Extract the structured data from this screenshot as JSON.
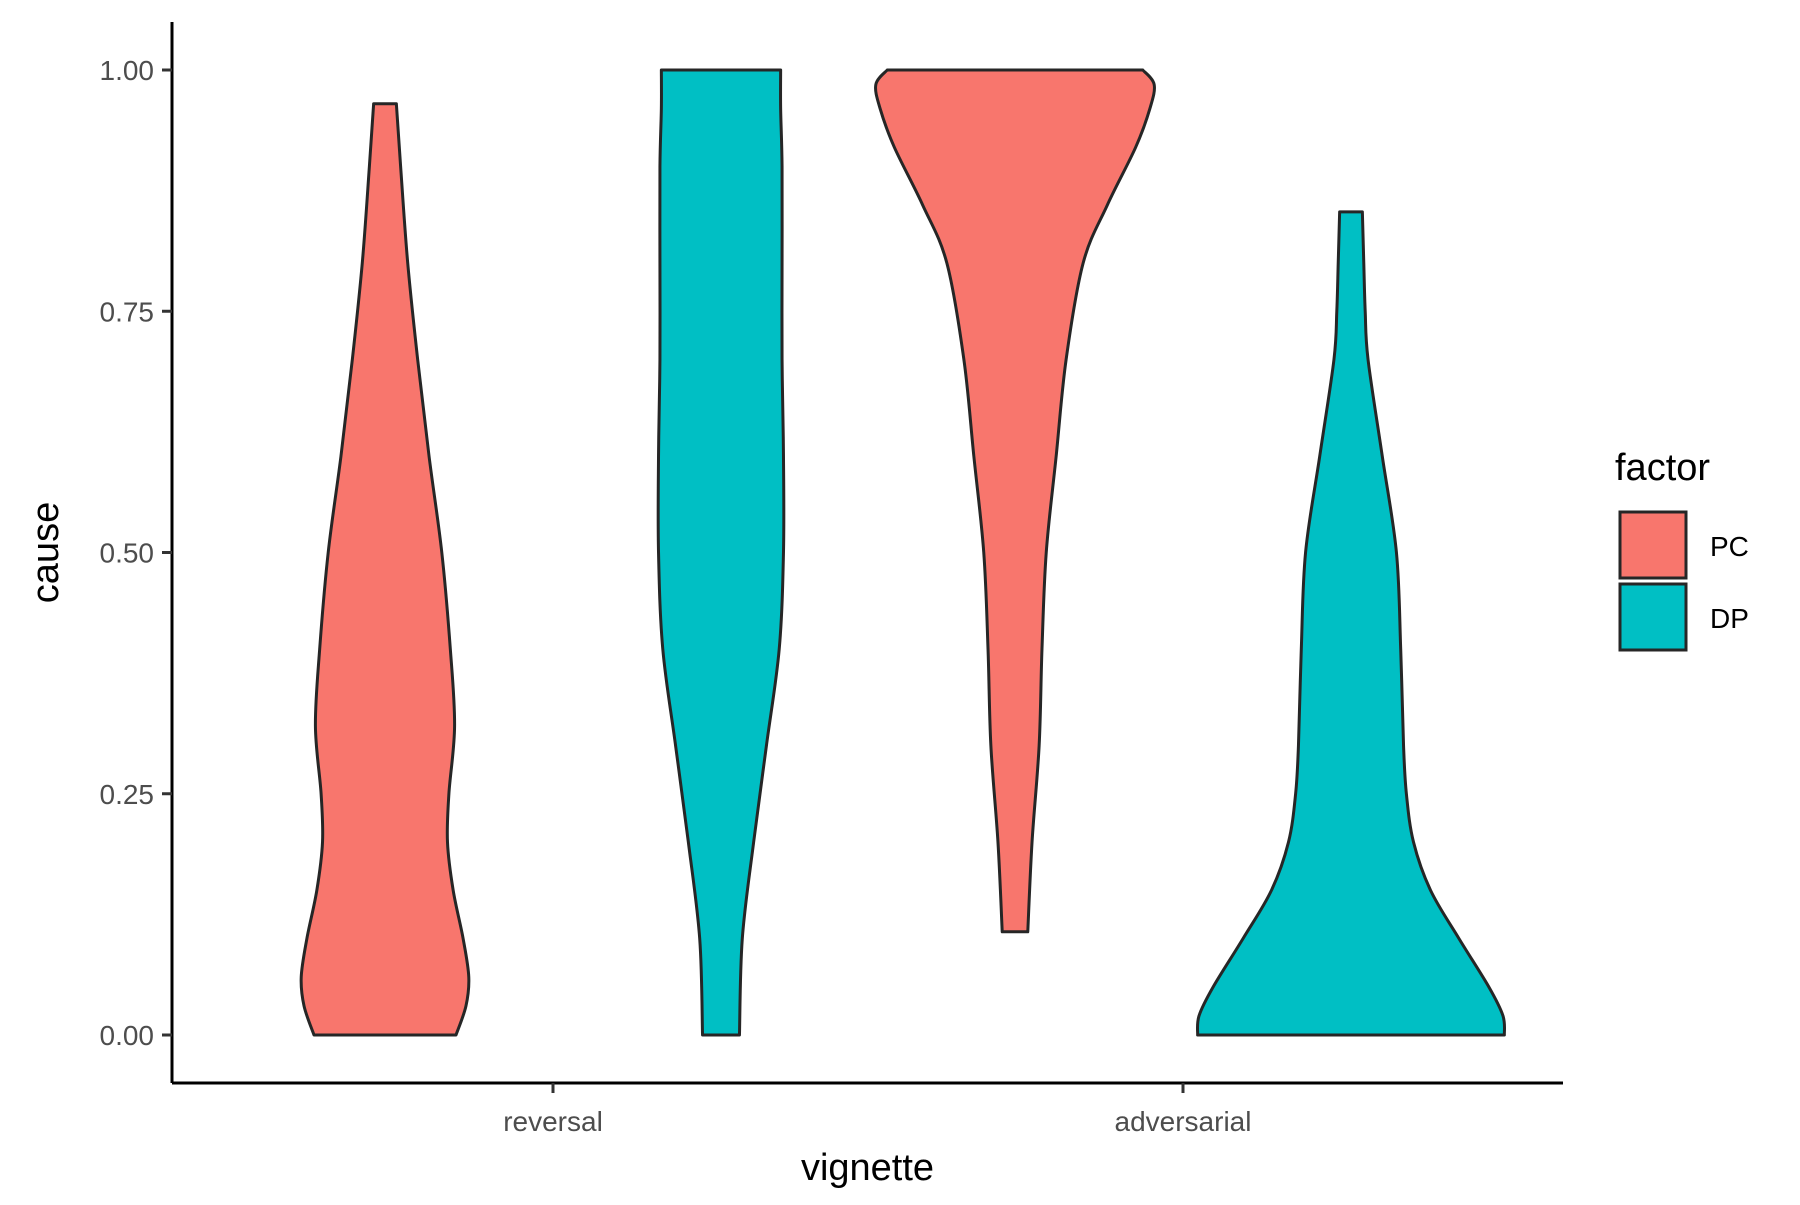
{
  "chart_data": {
    "type": "violin",
    "xlabel": "vignette",
    "ylabel": "cause",
    "categories": [
      "reversal",
      "adversarial"
    ],
    "ylim": [
      -0.05,
      1.05
    ],
    "yticks": [
      0.0,
      0.25,
      0.5,
      0.75,
      1.0
    ],
    "ytick_labels": [
      "0.00",
      "0.25",
      "0.50",
      "0.75",
      "1.00"
    ],
    "grid": false,
    "legend": {
      "title": "factor",
      "position": "right",
      "entries": [
        {
          "name": "PC",
          "color": "#F8766D"
        },
        {
          "name": "DP",
          "color": "#00BFC4"
        }
      ]
    },
    "series": [
      {
        "name": "PC",
        "color": "#F8766D",
        "violins": [
          {
            "category": "reversal",
            "range": [
              0.0,
              0.965
            ],
            "profile": [
              [
                0.0,
                0.5
              ],
              [
                0.03,
                0.57
              ],
              [
                0.06,
                0.59
              ],
              [
                0.1,
                0.55
              ],
              [
                0.15,
                0.48
              ],
              [
                0.2,
                0.44
              ],
              [
                0.25,
                0.45
              ],
              [
                0.32,
                0.49
              ],
              [
                0.4,
                0.46
              ],
              [
                0.5,
                0.4
              ],
              [
                0.6,
                0.31
              ],
              [
                0.7,
                0.23
              ],
              [
                0.8,
                0.16
              ],
              [
                0.9,
                0.11
              ],
              [
                0.965,
                0.08
              ]
            ]
          },
          {
            "category": "adversarial",
            "range": [
              0.107,
              1.0
            ],
            "profile": [
              [
                0.107,
                0.09
              ],
              [
                0.2,
                0.12
              ],
              [
                0.3,
                0.17
              ],
              [
                0.4,
                0.19
              ],
              [
                0.5,
                0.22
              ],
              [
                0.6,
                0.29
              ],
              [
                0.7,
                0.36
              ],
              [
                0.8,
                0.48
              ],
              [
                0.86,
                0.65
              ],
              [
                0.92,
                0.85
              ],
              [
                0.96,
                0.95
              ],
              [
                0.985,
                0.98
              ],
              [
                1.0,
                0.9
              ]
            ]
          }
        ]
      },
      {
        "name": "DP",
        "color": "#00BFC4",
        "violins": [
          {
            "category": "reversal",
            "range": [
              0.0,
              1.0
            ],
            "profile": [
              [
                0.0,
                0.13
              ],
              [
                0.1,
                0.15
              ],
              [
                0.2,
                0.23
              ],
              [
                0.3,
                0.32
              ],
              [
                0.4,
                0.41
              ],
              [
                0.5,
                0.44
              ],
              [
                0.6,
                0.44
              ],
              [
                0.7,
                0.43
              ],
              [
                0.8,
                0.43
              ],
              [
                0.9,
                0.43
              ],
              [
                0.96,
                0.42
              ],
              [
                1.0,
                0.42
              ]
            ]
          },
          {
            "category": "adversarial",
            "range": [
              0.0,
              0.853
            ],
            "profile": [
              [
                0.0,
                1.08
              ],
              [
                0.02,
                1.07
              ],
              [
                0.05,
                0.97
              ],
              [
                0.1,
                0.76
              ],
              [
                0.15,
                0.56
              ],
              [
                0.2,
                0.44
              ],
              [
                0.25,
                0.39
              ],
              [
                0.3,
                0.37
              ],
              [
                0.4,
                0.35
              ],
              [
                0.5,
                0.32
              ],
              [
                0.6,
                0.22
              ],
              [
                0.7,
                0.12
              ],
              [
                0.75,
                0.1
              ],
              [
                0.8,
                0.09
              ],
              [
                0.853,
                0.08
              ]
            ]
          }
        ]
      }
    ]
  }
}
